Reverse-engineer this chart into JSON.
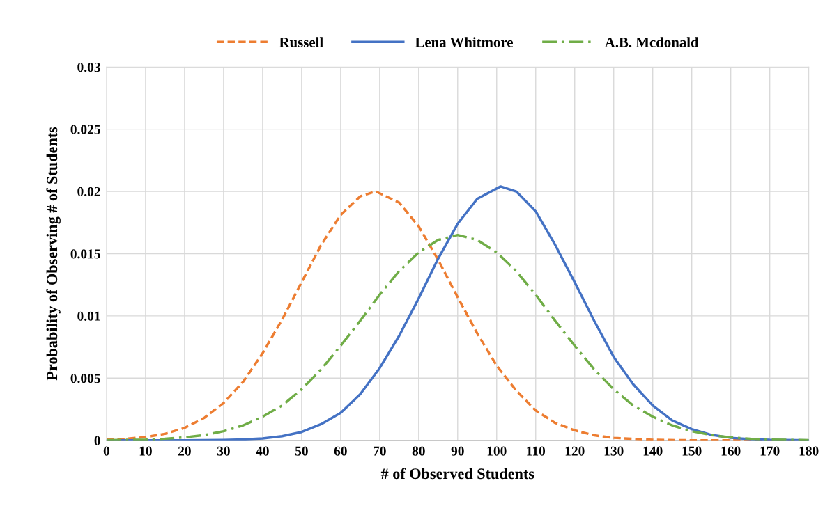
{
  "chart_data": {
    "type": "line",
    "xlabel": "# of Observed Students",
    "ylabel": "Probability of Observing # of Students",
    "xlim": [
      0,
      180
    ],
    "xticks": [
      0,
      10,
      20,
      30,
      40,
      50,
      60,
      70,
      80,
      90,
      100,
      110,
      120,
      130,
      140,
      150,
      160,
      170,
      180
    ],
    "ylim": [
      0,
      0.03
    ],
    "yticks": [
      0,
      0.005,
      0.01,
      0.015,
      0.02,
      0.025,
      0.03
    ],
    "grid": true,
    "legend": "top",
    "marker": "none",
    "series": [
      {
        "name": "Russell",
        "color": "#ed7d31",
        "line_style": "dashed",
        "x": [
          0,
          5,
          10,
          15,
          20,
          25,
          30,
          35,
          40,
          45,
          50,
          55,
          60,
          65,
          69,
          75,
          80,
          85,
          90,
          95,
          100,
          105,
          110,
          115,
          120,
          125,
          130,
          140,
          150,
          180
        ],
        "values": [
          5e-05,
          0.00012,
          0.00026,
          0.00052,
          0.001,
          0.0018,
          0.003,
          0.0047,
          0.007,
          0.0097,
          0.0127,
          0.0157,
          0.0181,
          0.0196,
          0.02,
          0.0191,
          0.0172,
          0.0145,
          0.0115,
          0.0086,
          0.006,
          0.004,
          0.0024,
          0.0014,
          0.0008,
          0.0004,
          0.0002,
          4e-05,
          0,
          0
        ]
      },
      {
        "name": "Lena Whitmore",
        "color": "#4472c4",
        "line_style": "solid",
        "x": [
          0,
          10,
          20,
          25,
          30,
          35,
          40,
          45,
          50,
          55,
          60,
          65,
          70,
          75,
          80,
          85,
          90,
          95,
          101,
          105,
          110,
          115,
          120,
          125,
          130,
          135,
          140,
          145,
          150,
          155,
          160,
          165,
          170,
          180
        ],
        "values": [
          0,
          0,
          0,
          1e-05,
          3e-05,
          7e-05,
          0.00015,
          0.00033,
          0.00067,
          0.0013,
          0.0022,
          0.0037,
          0.0058,
          0.0084,
          0.0114,
          0.0146,
          0.0174,
          0.0194,
          0.0204,
          0.02,
          0.0184,
          0.0157,
          0.0127,
          0.0096,
          0.0067,
          0.0045,
          0.0028,
          0.0016,
          0.0009,
          0.00044,
          0.0002,
          0.0001,
          4e-05,
          0
        ]
      },
      {
        "name": "A.B. Mcdonald",
        "color": "#70ad47",
        "line_style": "dashdot",
        "x": [
          0,
          10,
          15,
          20,
          25,
          30,
          35,
          40,
          45,
          50,
          55,
          60,
          65,
          70,
          75,
          80,
          85,
          90,
          95,
          100,
          105,
          110,
          115,
          120,
          125,
          130,
          135,
          140,
          145,
          150,
          155,
          160,
          165,
          170,
          180
        ],
        "values": [
          1e-05,
          6e-05,
          0.00013,
          0.00024,
          0.00042,
          0.00073,
          0.0012,
          0.0019,
          0.0028,
          0.0041,
          0.0057,
          0.0076,
          0.0096,
          0.0117,
          0.0136,
          0.0151,
          0.0161,
          0.0165,
          0.0161,
          0.0151,
          0.0136,
          0.0117,
          0.0096,
          0.0076,
          0.0057,
          0.0041,
          0.0028,
          0.0019,
          0.0012,
          0.00073,
          0.00042,
          0.00024,
          0.00013,
          6e-05,
          1e-05
        ]
      }
    ]
  }
}
